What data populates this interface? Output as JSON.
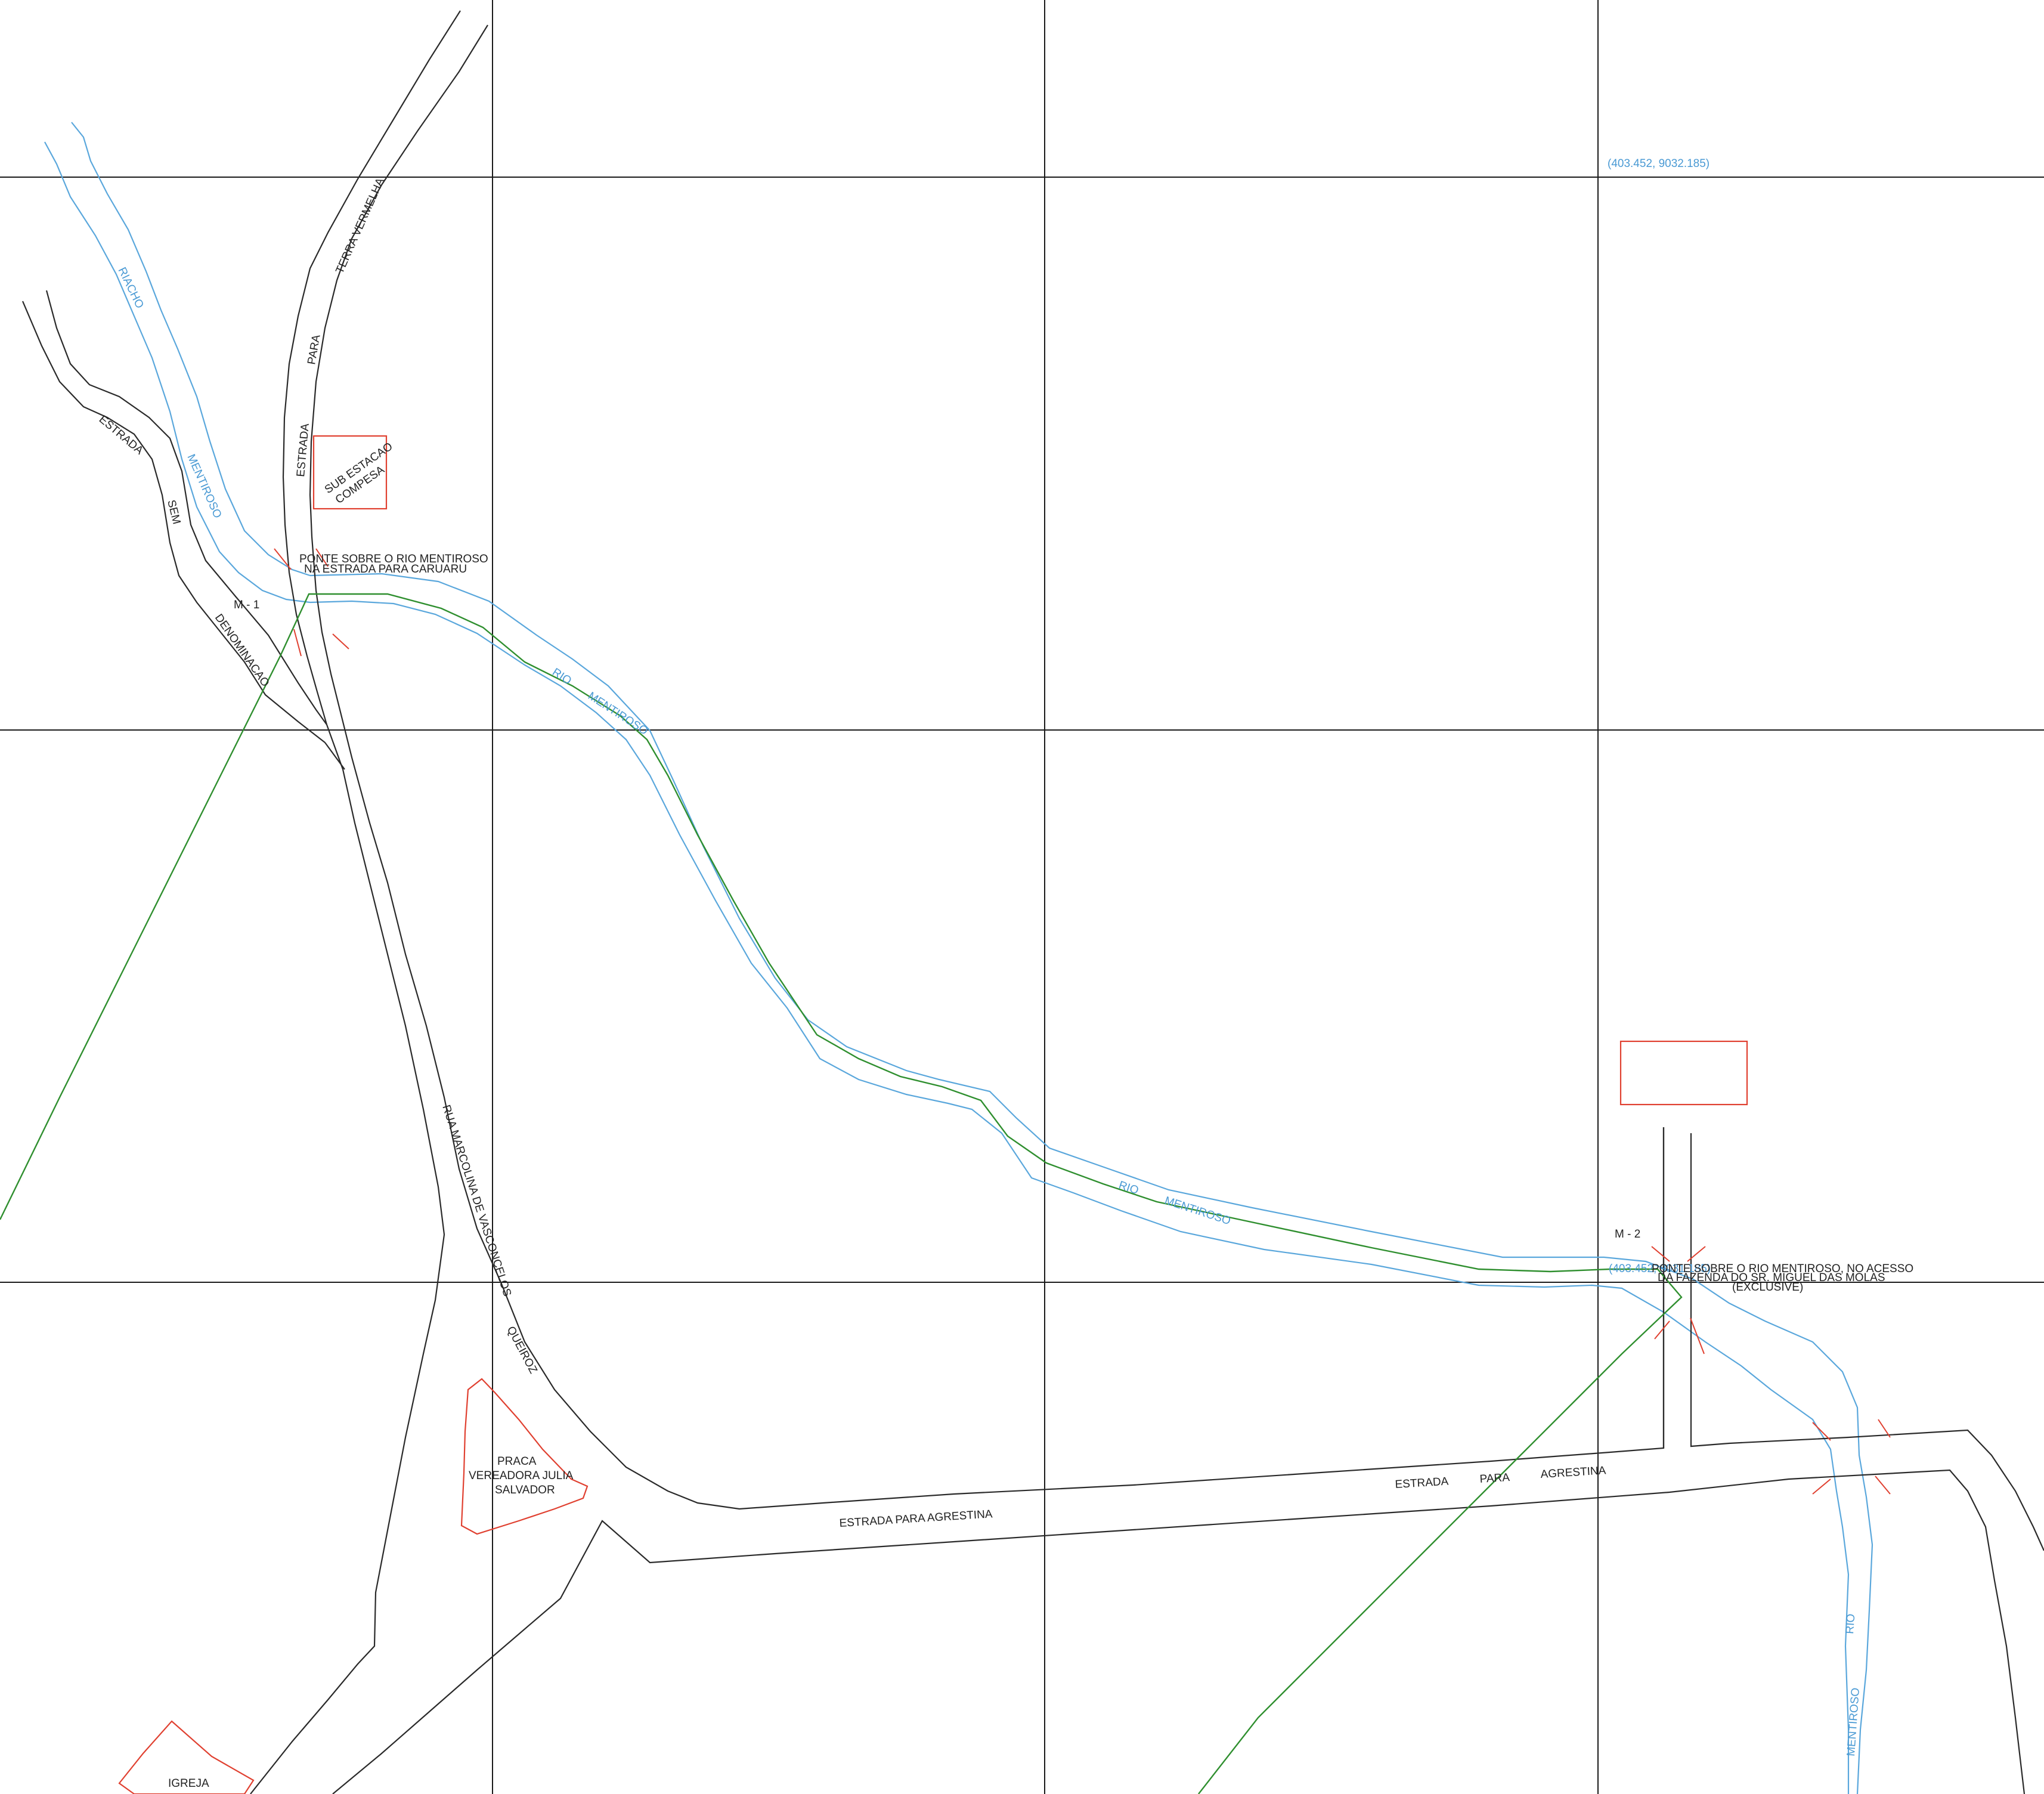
{
  "map": {
    "colors": {
      "grid": "#1a1a1a",
      "road": "#2a2a2a",
      "river": "#5aa7dc",
      "boundary": "#2f8f2f",
      "feature_outline": "#e04030"
    },
    "coordinates": {
      "upper": "(403.452, 9032.185)",
      "lower": "(403.452, 9031.185)"
    },
    "markers": {
      "m1": "M - 1",
      "m2": "M - 2"
    },
    "bridges": {
      "caruaru_line1": "PONTE SOBRE O RIO MENTIROSO",
      "caruaru_line2": "NA ESTRADA PARA CARUARU",
      "fazenda_line1": "PONTE SOBRE O RIO MENTIROSO, NO ACESSO",
      "fazenda_line2": "DA FAZENDA DO SR. MIGUEL DAS MOLAS",
      "fazenda_line3": "(EXCLUSIVE)"
    },
    "roads": {
      "terra_vermelha": [
        "ESTRADA",
        "PARA",
        "TERRA VERMELHA"
      ],
      "sem_denominacao": [
        "ESTRADA",
        "SEM",
        "DENOMINACAO"
      ],
      "rua_marcolina": "RUA MARCOLINA DE VASCONCELOS",
      "queiroz": "QUEIROZ",
      "agrestina_lower": "ESTRADA PARA AGRESTINA",
      "agrestina_upper": [
        "ESTRADA",
        "PARA",
        "AGRESTINA"
      ]
    },
    "rivers": {
      "riacho": "RIACHO",
      "mentiroso": "MENTIROSO",
      "rio": "RIO",
      "mentiroso_main": "MENTIROSO"
    },
    "features": {
      "substation_line1": "SUB ESTACAO",
      "substation_line2": "COMPESA",
      "praca_line1": "PRACA",
      "praca_line2": "VEREADORA JULIA",
      "praca_line3": "SALVADOR",
      "igreja": "IGREJA"
    }
  }
}
